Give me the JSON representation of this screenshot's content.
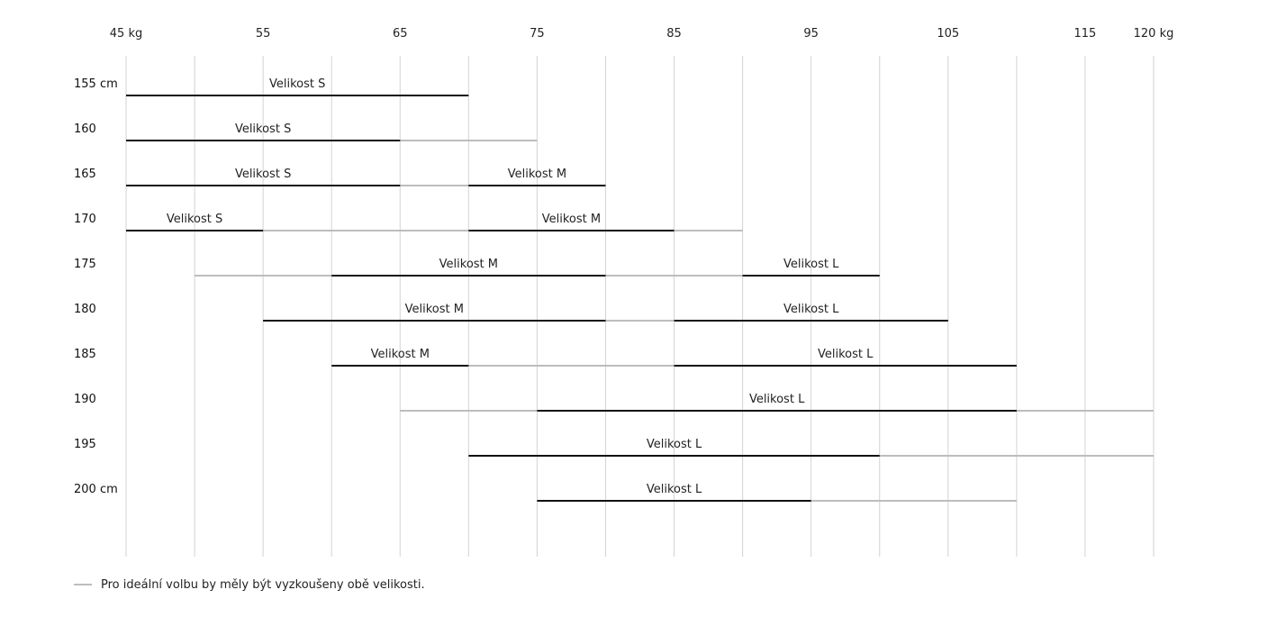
{
  "chart_data": {
    "type": "range-bar",
    "x_ticks": [
      {
        "value": 45,
        "label": "45 kg"
      },
      {
        "value": 55,
        "label": "55"
      },
      {
        "value": 65,
        "label": "65"
      },
      {
        "value": 75,
        "label": "75"
      },
      {
        "value": 85,
        "label": "85"
      },
      {
        "value": 95,
        "label": "95"
      },
      {
        "value": 105,
        "label": "105"
      },
      {
        "value": 115,
        "label": "115"
      },
      {
        "value": 120,
        "label": "120 kg"
      }
    ],
    "gridlines": [
      45,
      50,
      55,
      60,
      65,
      70,
      75,
      80,
      85,
      90,
      95,
      100,
      105,
      110,
      115,
      120
    ],
    "xlim": [
      45,
      120
    ],
    "rows": [
      {
        "label": "155 cm",
        "segments": [
          {
            "from": 45,
            "to": 70,
            "style": "primary",
            "label": "Velikost S"
          }
        ]
      },
      {
        "label": "160",
        "segments": [
          {
            "from": 45,
            "to": 65,
            "style": "primary",
            "label": "Velikost S"
          },
          {
            "from": 65,
            "to": 75,
            "style": "both",
            "label": ""
          }
        ]
      },
      {
        "label": "165",
        "segments": [
          {
            "from": 45,
            "to": 65,
            "style": "primary",
            "label": "Velikost S"
          },
          {
            "from": 65,
            "to": 70,
            "style": "both",
            "label": ""
          },
          {
            "from": 70,
            "to": 80,
            "style": "primary",
            "label": "Velikost M"
          }
        ]
      },
      {
        "label": "170",
        "segments": [
          {
            "from": 45,
            "to": 55,
            "style": "primary",
            "label": "Velikost S"
          },
          {
            "from": 55,
            "to": 70,
            "style": "both",
            "label": ""
          },
          {
            "from": 70,
            "to": 85,
            "style": "primary",
            "label": "Velikost M"
          },
          {
            "from": 85,
            "to": 90,
            "style": "both",
            "label": ""
          }
        ]
      },
      {
        "label": "175",
        "segments": [
          {
            "from": 50,
            "to": 60,
            "style": "both",
            "label": ""
          },
          {
            "from": 60,
            "to": 80,
            "style": "primary",
            "label": "Velikost M"
          },
          {
            "from": 80,
            "to": 90,
            "style": "both",
            "label": ""
          },
          {
            "from": 90,
            "to": 100,
            "style": "primary",
            "label": "Velikost L"
          }
        ]
      },
      {
        "label": "180",
        "segments": [
          {
            "from": 55,
            "to": 80,
            "style": "primary",
            "label": "Velikost M"
          },
          {
            "from": 80,
            "to": 85,
            "style": "both",
            "label": ""
          },
          {
            "from": 85,
            "to": 105,
            "style": "primary",
            "label": "Velikost L"
          }
        ]
      },
      {
        "label": "185",
        "segments": [
          {
            "from": 60,
            "to": 70,
            "style": "primary",
            "label": "Velikost M"
          },
          {
            "from": 70,
            "to": 85,
            "style": "both",
            "label": ""
          },
          {
            "from": 85,
            "to": 110,
            "style": "primary",
            "label": "Velikost L"
          }
        ]
      },
      {
        "label": "190",
        "segments": [
          {
            "from": 65,
            "to": 75,
            "style": "both",
            "label": ""
          },
          {
            "from": 75,
            "to": 110,
            "style": "primary",
            "label": "Velikost L"
          },
          {
            "from": 110,
            "to": 120,
            "style": "both",
            "label": ""
          }
        ]
      },
      {
        "label": "195",
        "segments": [
          {
            "from": 70,
            "to": 100,
            "style": "primary",
            "label": "Velikost L"
          },
          {
            "from": 100,
            "to": 120,
            "style": "both",
            "label": ""
          }
        ]
      },
      {
        "label": "200 cm",
        "segments": [
          {
            "from": 75,
            "to": 95,
            "style": "primary",
            "label": "Velikost L"
          },
          {
            "from": 95,
            "to": 110,
            "style": "both",
            "label": ""
          }
        ]
      }
    ],
    "legend": [
      {
        "style": "both",
        "label": "Pro ideální volbu by měly být vyzkoušeny obě velikosti."
      }
    ],
    "colors": {
      "primary": "#111111",
      "both": "#bdbdbd",
      "grid": "#d3d3d3"
    }
  }
}
